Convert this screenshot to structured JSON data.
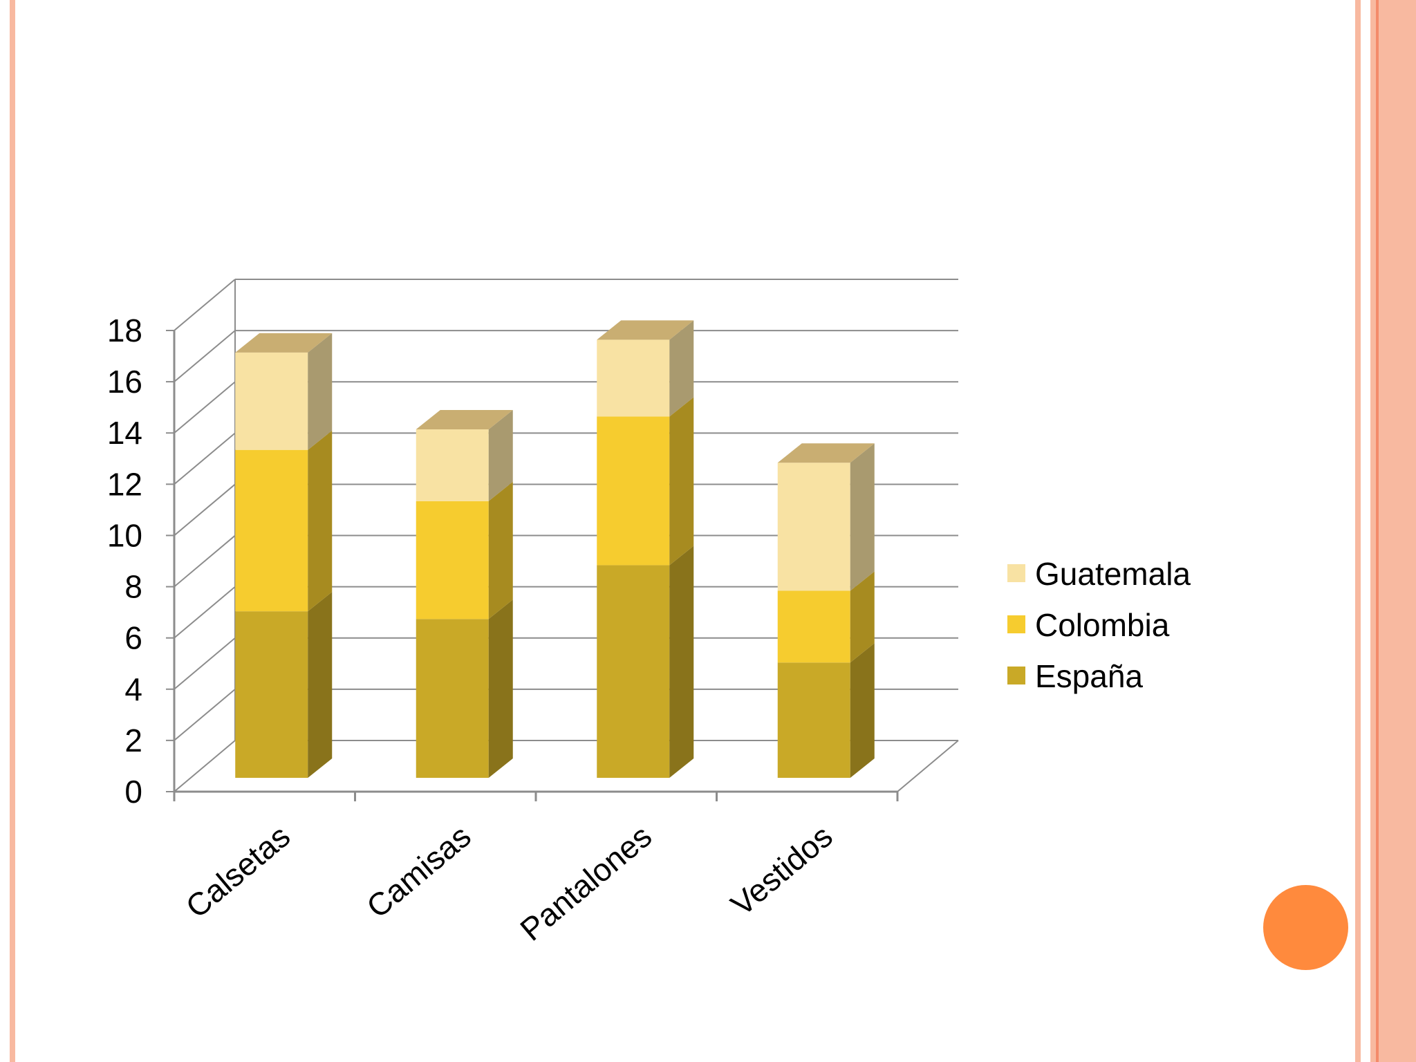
{
  "theme": {
    "border_color": "#f8b9a0",
    "dot_color": "#ff8a3d"
  },
  "chart_data": {
    "type": "bar",
    "stacked": true,
    "three_d": true,
    "categories": [
      "Calsetas",
      "Camisas",
      "Pantalones",
      "Vestidos"
    ],
    "series": [
      {
        "name": "España",
        "values": [
          6.5,
          6.2,
          8.3,
          4.5
        ],
        "color": "#c9a927"
      },
      {
        "name": "Colombia",
        "values": [
          6.3,
          4.6,
          5.8,
          2.8
        ],
        "color": "#f6cc2f"
      },
      {
        "name": "Guatemala",
        "values": [
          3.8,
          2.8,
          3.0,
          5.0
        ],
        "color": "#f8e2a3"
      }
    ],
    "ylim": [
      0,
      18
    ],
    "yticks": [
      "0",
      "2",
      "4",
      "6",
      "8",
      "10",
      "12",
      "14",
      "16",
      "18"
    ],
    "grid": true,
    "legend": "right"
  }
}
